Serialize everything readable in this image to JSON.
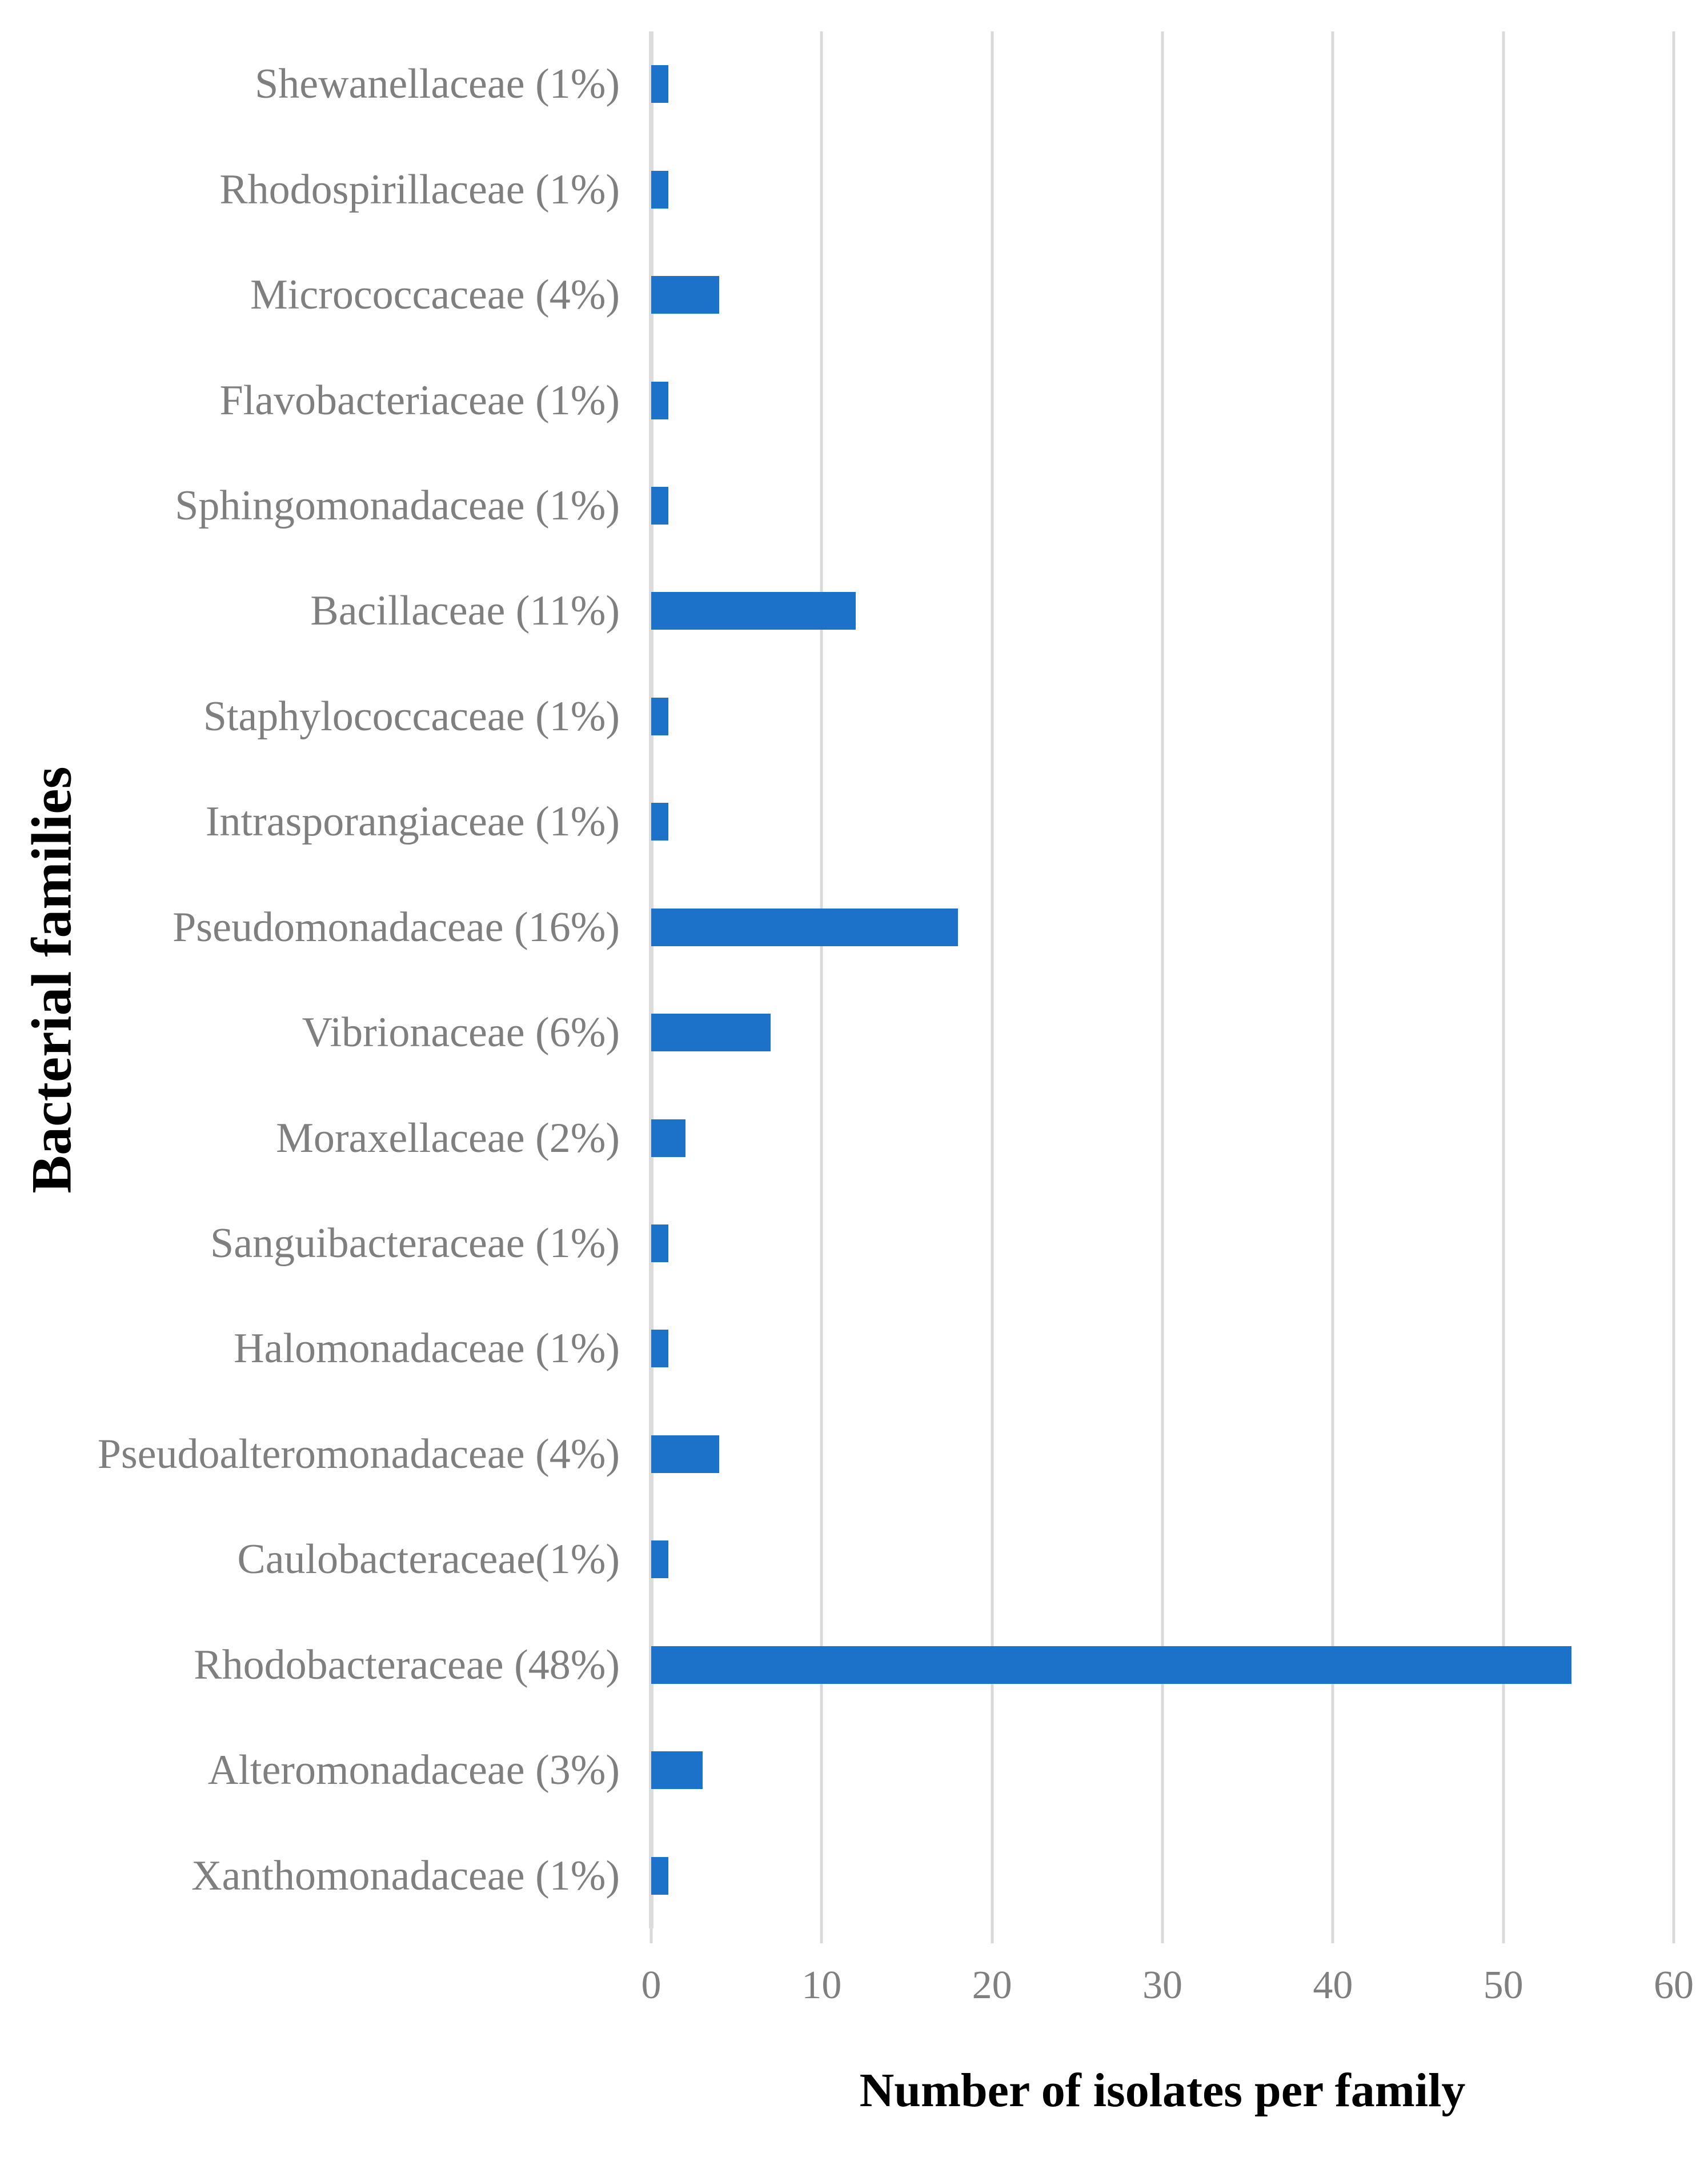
{
  "chart_data": {
    "type": "bar",
    "orientation": "horizontal",
    "title": "",
    "xlabel": "Number of isolates per family",
    "ylabel": "Bacterial families",
    "categories": [
      "Shewanellaceae (1%)",
      "Rhodospirillaceae (1%)",
      "Micrococcaceae (4%)",
      "Flavobacteriaceae (1%)",
      "Sphingomonadaceae (1%)",
      "Bacillaceae (11%)",
      "Staphylococcaceae (1%)",
      "Intrasporangiaceae (1%)",
      "Pseudomonadaceae (16%)",
      "Vibrionaceae (6%)",
      "Moraxellaceae (2%)",
      "Sanguibacteraceae (1%)",
      "Halomonadaceae (1%)",
      "Pseudoalteromonadaceae (4%)",
      "Caulobacteraceae(1%)",
      "Rhodobacteraceae (48%)",
      "Alteromonadaceae (3%)",
      "Xanthomonadaceae (1%)"
    ],
    "values": [
      1,
      1,
      4,
      1,
      1,
      12,
      1,
      1,
      18,
      7,
      2,
      1,
      1,
      4,
      1,
      54,
      3,
      1
    ],
    "xlim": [
      0,
      60
    ],
    "xticks": [
      0,
      10,
      20,
      30,
      40,
      50,
      60
    ],
    "grid": "vertical-only",
    "legend": "none",
    "colors": {
      "bar": "#1b72c8",
      "gridline": "#d9d9d9",
      "axis_line": "#dcdcdc",
      "tick_label": "#7f7f7f",
      "category_label": "#7f7f7f",
      "axis_title": "#000000",
      "background": "#ffffff"
    }
  }
}
